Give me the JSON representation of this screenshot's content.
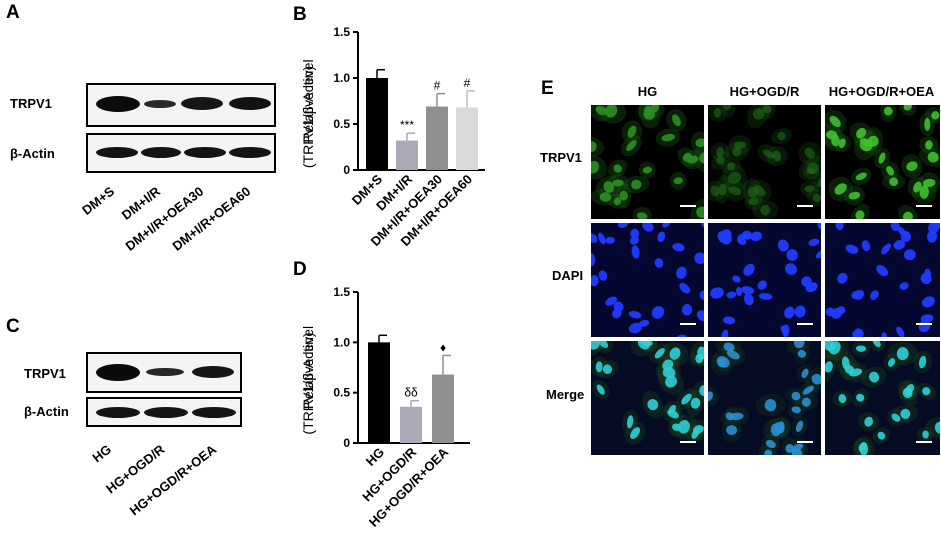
{
  "panels": {
    "A": {
      "letter": "A",
      "rows": [
        "TRPV1",
        "β-Actin"
      ],
      "lanes": [
        "DM+S",
        "DM+I/R",
        "DM+I/R+OEA30",
        "DM+I/R+OEA60"
      ]
    },
    "C": {
      "letter": "C",
      "rows": [
        "TRPV1",
        "β-Actin"
      ],
      "lanes": [
        "HG",
        "HG+OGD/R",
        "HG+OGD/R+OEA"
      ]
    },
    "E": {
      "letter": "E",
      "columns": [
        "HG",
        "HG+OGD/R",
        "HG+OGD/R+OEA"
      ],
      "rows": [
        "TRPV1",
        "DAPI",
        "Merge"
      ]
    }
  },
  "chart_data": [
    {
      "panel": "B",
      "type": "bar",
      "ylabel_line1": "Relative level",
      "ylabel_line2": "(TRPV1/β-Actin)",
      "ylim": [
        0,
        1.5
      ],
      "yticks": [
        "0",
        "0.5",
        "1.0",
        "1.5"
      ],
      "categories": [
        "DM+S",
        "DM+I/R",
        "DM+I/R+OEA30",
        "DM+I/R+OEA60"
      ],
      "values": [
        1.0,
        0.32,
        0.69,
        0.68
      ],
      "errors": [
        0.09,
        0.08,
        0.14,
        0.18
      ],
      "annotations": [
        "",
        "***",
        "#",
        "#"
      ],
      "colors": [
        "#000000",
        "#a9a9b8",
        "#8f8f8f",
        "#d9d9d9"
      ]
    },
    {
      "panel": "D",
      "type": "bar",
      "ylabel_line1": "Relative level",
      "ylabel_line2": "(TRPV1/β-Actin)",
      "ylim": [
        0,
        1.5
      ],
      "yticks": [
        "0",
        "0.5",
        "1.0",
        "1.5"
      ],
      "categories": [
        "HG",
        "HG+OGD/R",
        "HG+OGD/R+OEA"
      ],
      "values": [
        1.0,
        0.36,
        0.68
      ],
      "errors": [
        0.07,
        0.06,
        0.19
      ],
      "annotations": [
        "",
        "δδ",
        "♦"
      ],
      "colors": [
        "#000000",
        "#a9a9b8",
        "#8f8f8f"
      ]
    }
  ]
}
